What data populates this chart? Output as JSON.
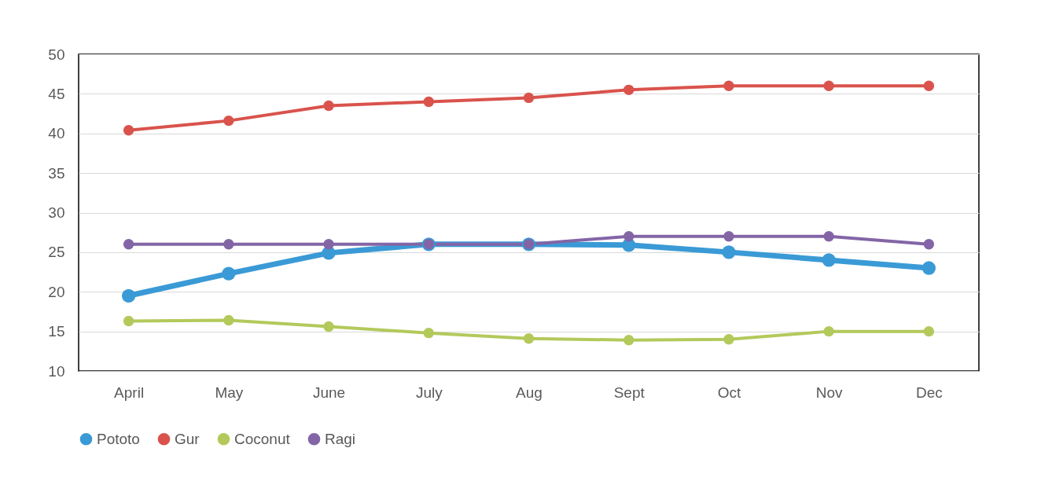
{
  "chart_data": {
    "type": "line",
    "categories": [
      "April",
      "May",
      "June",
      "July",
      "Aug",
      "Sept",
      "Oct",
      "Nov",
      "Dec"
    ],
    "series": [
      {
        "name": "Pototo",
        "color": "#3a9ad6",
        "values": [
          19.5,
          22.3,
          24.9,
          26,
          26,
          25.9,
          25,
          24,
          23
        ]
      },
      {
        "name": "Gur",
        "color": "#d9534c",
        "values": [
          40.4,
          41.6,
          43.5,
          44,
          44.5,
          45.5,
          46,
          46,
          46
        ]
      },
      {
        "name": "Coconut",
        "color": "#b3c95b",
        "values": [
          16.3,
          16.4,
          15.6,
          14.8,
          14.1,
          13.9,
          14,
          15,
          15
        ]
      },
      {
        "name": "Ragi",
        "color": "#8365a6",
        "values": [
          26,
          26,
          26,
          26,
          26,
          27,
          27,
          27,
          26
        ]
      }
    ],
    "ylim": [
      10,
      50
    ],
    "yticks": [
      10,
      15,
      20,
      25,
      30,
      35,
      40,
      45,
      50
    ],
    "grid": "y",
    "legend": "bottom",
    "marker": "circle",
    "line_style": "solid"
  }
}
